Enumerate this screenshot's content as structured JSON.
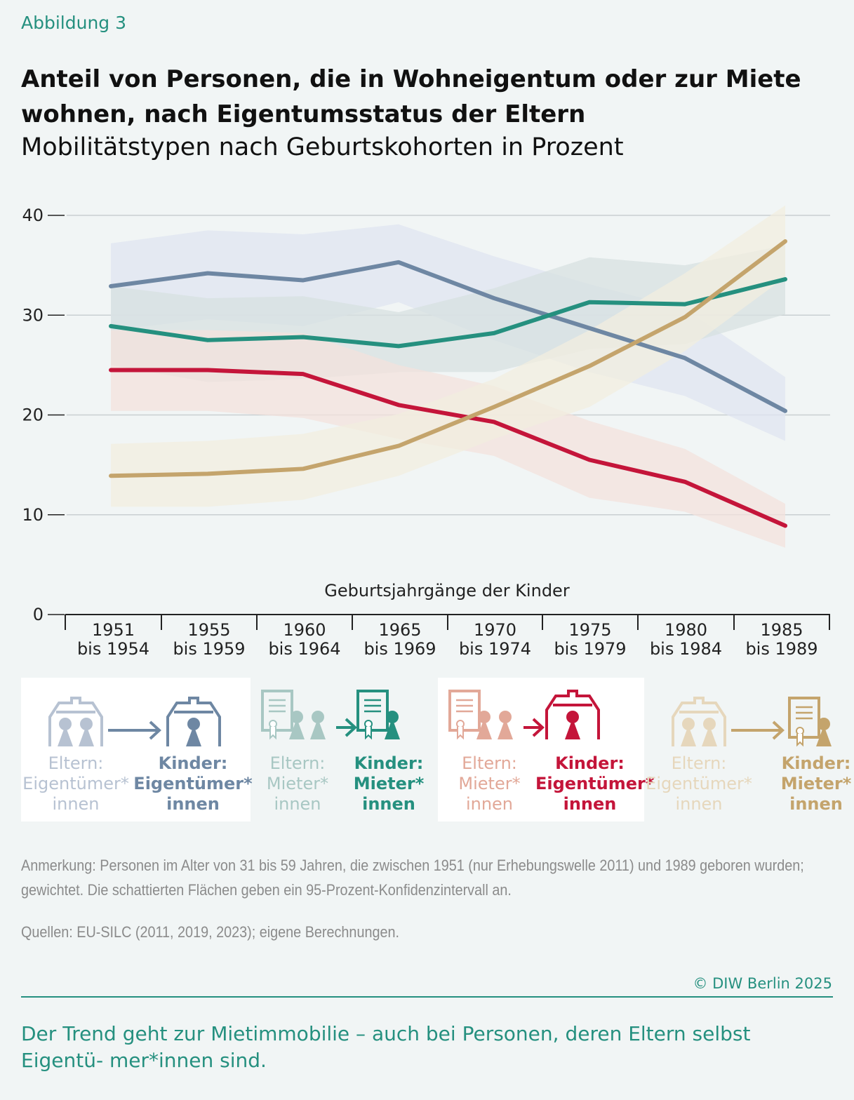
{
  "figure_label": "Abbildung 3",
  "title": "Anteil von Personen, die in Wohneigentum oder zur Miete wohnen, nach Eigentumsstatus der Eltern",
  "subtitle": "Mobilitätstypen nach Geburtskohorten in Prozent",
  "chart_data": {
    "type": "line",
    "xlabel": "Geburtsjahrgänge der Kinder",
    "ylabel": "",
    "ylim": [
      0,
      40
    ],
    "yticks": [
      0,
      10,
      20,
      30,
      40
    ],
    "grid": true,
    "categories": [
      [
        "1951",
        "bis 1954"
      ],
      [
        "1955",
        "bis 1959"
      ],
      [
        "1960",
        "bis 1964"
      ],
      [
        "1965",
        "bis 1969"
      ],
      [
        "1970",
        "bis 1974"
      ],
      [
        "1975",
        "bis 1979"
      ],
      [
        "1980",
        "bis 1984"
      ],
      [
        "1985",
        "bis 1989"
      ]
    ],
    "confidence_band": "95%",
    "series": [
      {
        "key": "owner_owner",
        "color": "#6e87a3",
        "band_color": "#dfe4f0",
        "values": [
          32.9,
          34.2,
          33.5,
          35.3,
          31.7,
          28.7,
          25.7,
          20.4
        ],
        "upper": [
          37.2,
          38.5,
          38.1,
          39.1,
          35.9,
          33.1,
          30.6,
          23.8
        ],
        "lower": [
          28.5,
          29.6,
          28.9,
          31.3,
          27.5,
          24.3,
          21.9,
          17.4
        ]
      },
      {
        "key": "renter_renter",
        "color": "#25907f",
        "band_color": "#d7e0e0",
        "values": [
          28.9,
          27.5,
          27.8,
          26.9,
          28.2,
          31.3,
          31.1,
          33.6
        ],
        "upper": [
          32.9,
          31.7,
          31.9,
          30.3,
          32.7,
          35.8,
          35.0,
          37.0
        ],
        "lower": [
          25.0,
          23.3,
          23.6,
          24.3,
          24.3,
          26.6,
          27.1,
          30.1
        ]
      },
      {
        "key": "renter_owner",
        "color": "#c4153a",
        "band_color": "#f3e2dc",
        "values": [
          24.5,
          24.5,
          24.1,
          21.0,
          19.3,
          15.5,
          13.3,
          8.9
        ],
        "upper": [
          28.5,
          28.5,
          28.2,
          25.0,
          22.9,
          19.4,
          16.6,
          11.1
        ],
        "lower": [
          20.4,
          20.4,
          19.7,
          17.6,
          15.9,
          11.7,
          10.3,
          6.7
        ]
      },
      {
        "key": "owner_renter",
        "color": "#c4a46c",
        "band_color": "#f2eedf",
        "values": [
          13.9,
          14.1,
          14.6,
          16.9,
          20.8,
          24.9,
          29.8,
          37.4
        ],
        "upper": [
          17.1,
          17.4,
          18.1,
          20.1,
          23.6,
          28.5,
          34.2,
          41.0
        ],
        "lower": [
          10.8,
          10.8,
          11.5,
          13.9,
          17.6,
          20.8,
          26.4,
          33.8
        ]
      }
    ]
  },
  "legend": [
    {
      "parent": [
        "Eltern:",
        "Eigentümer*",
        "innen"
      ],
      "child": [
        "Kinder:",
        "Eigentümer*",
        "innen"
      ],
      "icon_from": "house-icon",
      "icon_to": "house-icon",
      "light": "#b7c2d2",
      "dark": "#6e87a3"
    },
    {
      "parent": [
        "Eltern:",
        "Mieter*",
        "innen"
      ],
      "child": [
        "Kinder:",
        "Mieter*",
        "innen"
      ],
      "icon_from": "lease-document-icon",
      "icon_to": "lease-document-icon",
      "light": "#a8c7c3",
      "dark": "#25907f"
    },
    {
      "parent": [
        "Eltern:",
        "Mieter*",
        "innen"
      ],
      "child": [
        "Kinder:",
        "Eigentümer*",
        "innen"
      ],
      "icon_from": "lease-document-icon",
      "icon_to": "house-icon",
      "light": "#e2a898",
      "dark": "#c4153a"
    },
    {
      "parent": [
        "Eltern:",
        "Eigentümer*",
        "innen"
      ],
      "child": [
        "Kinder:",
        "Mieter*",
        "innen"
      ],
      "icon_from": "house-icon",
      "icon_to": "lease-document-icon",
      "light": "#e6d7bc",
      "dark": "#c4a46c"
    }
  ],
  "note": "Anmerkung: Personen im Alter von 31 bis 59 Jahren, die zwischen 1951 (nur Erhebungswelle 2011) und 1989 geboren wurden; gewichtet. Die schattierten Flächen geben ein 95-Prozent-Konfidenzintervall an.",
  "sources": "Quellen: EU-SILC (2011, 2019, 2023); eigene Berechnungen.",
  "copyright": "© DIW Berlin 2025",
  "takeaway": "Der Trend geht zur Mietimmobilie – auch bei Personen, deren Eltern selbst Eigentü- mer*innen sind."
}
